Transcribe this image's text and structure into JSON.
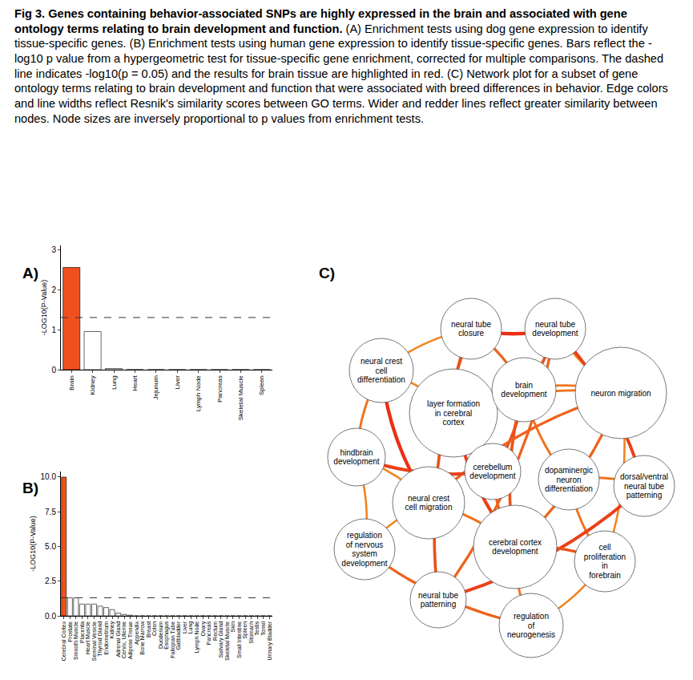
{
  "caption": {
    "label": "Fig 3.",
    "title": "Genes containing behavior-associated SNPs are highly expressed in the brain and associated with gene ontology terms relating to brain development and function.",
    "text": "(A) Enrichment tests using dog gene expression to identify tissue-specific genes. (B) Enrichment tests using human gene expression to identify tissue-specific genes. Bars reflect the -log10 p value from a hypergeometric test for tissue-specific gene enrichment, corrected for multiple comparisons. The dashed line indicates -log10(p = 0.05) and the results for brain tissue are highlighted in red. (C) Network plot for a subset of gene ontology terms relating to brain development and function that were associated with breed differences in behavior. Edge colors and line widths reflect Resnik's similarity scores between GO terms. Wider and redder lines reflect greater similarity between nodes. Node sizes are inversely proportional to p values from enrichment tests."
  },
  "chart_data": [
    {
      "type": "bar",
      "panel": "A)",
      "y_label": "-LOG10(P-Value)",
      "categories": [
        "Brain",
        "Kidney",
        "Lung",
        "Heart",
        "Jejunum",
        "Liver",
        "Lymph Node",
        "Pancreas",
        "Skeletal Muscle",
        "Spleen"
      ],
      "values": [
        2.55,
        0.95,
        0.03,
        0,
        0,
        0,
        0,
        0,
        0,
        0
      ],
      "colors": [
        "#f0501e",
        "#ffffff",
        "#ffffff",
        "#ffffff",
        "#ffffff",
        "#ffffff",
        "#ffffff",
        "#ffffff",
        "#ffffff",
        "#ffffff"
      ],
      "threshold": 1.301,
      "ylim": [
        0,
        3.1
      ],
      "yticks": [
        0,
        1,
        2,
        3
      ],
      "grid": false
    },
    {
      "type": "bar",
      "panel": "B)",
      "y_label": "-LOG10(P-Value)",
      "categories": [
        "Cerebral Cortex",
        "Prostate",
        "Smooth Muscle",
        "Placenta",
        "Heart Muscle",
        "Seminal Vesicle",
        "Thyroid Gland",
        "Endometrium",
        "Kidney",
        "Adrenal Gland",
        "Cervix, Uterine",
        "Adipose Tissue",
        "Appendix",
        "Bone Marrow",
        "Breast",
        "Colon",
        "Duodenum",
        "Esophagus",
        "Fallopian Tube",
        "Gallbladder",
        "Liver",
        "Lung",
        "Lymph Node",
        "Ovary",
        "Pancreas",
        "Rectum",
        "Salivary Gland",
        "Skeletal Muscle",
        "Skin",
        "Small Intestine",
        "Spleen",
        "Stomach",
        "Testis",
        "Tonsil",
        "Urinary Bladder"
      ],
      "values": [
        10.0,
        1.3,
        1.3,
        0.85,
        0.85,
        0.85,
        0.7,
        0.6,
        0.45,
        0.2,
        0.1,
        0.05,
        0,
        0,
        0,
        0,
        0,
        0,
        0,
        0,
        0,
        0,
        0,
        0,
        0,
        0,
        0,
        0,
        0,
        0,
        0,
        0,
        0,
        0,
        0
      ],
      "colors": [
        "#f0501e",
        "#ffffff",
        "#ffffff",
        "#ffffff",
        "#ffffff",
        "#ffffff",
        "#ffffff",
        "#ffffff",
        "#ffffff",
        "#ffffff",
        "#ffffff",
        "#ffffff",
        "#ffffff",
        "#ffffff",
        "#ffffff",
        "#ffffff",
        "#ffffff",
        "#ffffff",
        "#ffffff",
        "#ffffff",
        "#ffffff",
        "#ffffff",
        "#ffffff",
        "#ffffff",
        "#ffffff",
        "#ffffff",
        "#ffffff",
        "#ffffff",
        "#ffffff",
        "#ffffff",
        "#ffffff",
        "#ffffff",
        "#ffffff",
        "#ffffff",
        "#ffffff"
      ],
      "threshold": 1.301,
      "ylim": [
        0,
        10.4
      ],
      "yticks": [
        {
          "value": 0,
          "label": "0.0"
        },
        2.5,
        {
          "value": 5,
          "label": "5.0"
        },
        7.5,
        {
          "value": 10,
          "label": "10.0"
        }
      ],
      "grid": false
    }
  ],
  "network": {
    "panel": "C)",
    "nodes": [
      {
        "label": "neural tube closure",
        "size": 38
      },
      {
        "label": "neural tube development",
        "size": 38
      },
      {
        "label": "neural crest cell differentiation",
        "size": 40
      },
      {
        "label": "layer formation in cerebral cortex",
        "size": 55
      },
      {
        "label": "brain development",
        "size": 40
      },
      {
        "label": "neuron migration",
        "size": 57
      },
      {
        "label": "hindbrain development",
        "size": 36
      },
      {
        "label": "cerebellum development",
        "size": 35
      },
      {
        "label": "dopaminergic neuron differentiation",
        "size": 38
      },
      {
        "label": "dorsal/ventral neural tube patterning",
        "size": 38
      },
      {
        "label": "neural crest cell migration",
        "size": 45
      },
      {
        "label": "regulation of nervous system development",
        "size": 38
      },
      {
        "label": "cerebral cortex development",
        "size": 52
      },
      {
        "label": "cell proliferation in forebrain",
        "size": 38
      },
      {
        "label": "neural tube patterning",
        "size": 35
      },
      {
        "label": "regulation of neurogenesis",
        "size": 40
      }
    ],
    "edges": [
      {
        "source": 0,
        "target": 1,
        "similarity": 0.9
      },
      {
        "source": 0,
        "target": 4,
        "similarity": 0.6
      },
      {
        "source": 0,
        "target": 3,
        "similarity": 0.5
      },
      {
        "source": 1,
        "target": 4,
        "similarity": 0.7
      },
      {
        "source": 1,
        "target": 5,
        "similarity": 0.4
      },
      {
        "source": 1,
        "target": 9,
        "similarity": 0.8
      },
      {
        "source": 2,
        "target": 10,
        "similarity": 0.9
      },
      {
        "source": 2,
        "target": 3,
        "similarity": 0.4
      },
      {
        "source": 2,
        "target": 6,
        "similarity": 0.5
      },
      {
        "source": 3,
        "target": 4,
        "similarity": 0.6
      },
      {
        "source": 3,
        "target": 12,
        "similarity": 0.8
      },
      {
        "source": 3,
        "target": 5,
        "similarity": 0.5
      },
      {
        "source": 3,
        "target": 7,
        "similarity": 0.5
      },
      {
        "source": 4,
        "target": 7,
        "similarity": 0.7
      },
      {
        "source": 4,
        "target": 12,
        "similarity": 0.7
      },
      {
        "source": 4,
        "target": 5,
        "similarity": 0.5
      },
      {
        "source": 4,
        "target": 8,
        "similarity": 0.5
      },
      {
        "source": 5,
        "target": 12,
        "similarity": 0.6
      },
      {
        "source": 5,
        "target": 10,
        "similarity": 0.6
      },
      {
        "source": 5,
        "target": 13,
        "similarity": 0.4
      },
      {
        "source": 6,
        "target": 7,
        "similarity": 0.8
      },
      {
        "source": 6,
        "target": 10,
        "similarity": 0.4
      },
      {
        "source": 7,
        "target": 12,
        "similarity": 0.6
      },
      {
        "source": 8,
        "target": 9,
        "similarity": 0.5
      },
      {
        "source": 8,
        "target": 13,
        "similarity": 0.5
      },
      {
        "source": 9,
        "target": 14,
        "similarity": 0.8
      },
      {
        "source": 10,
        "target": 11,
        "similarity": 0.4
      },
      {
        "source": 10,
        "target": 12,
        "similarity": 0.5
      },
      {
        "source": 11,
        "target": 15,
        "similarity": 0.6
      },
      {
        "source": 12,
        "target": 13,
        "similarity": 0.7
      },
      {
        "source": 12,
        "target": 15,
        "similarity": 0.5
      },
      {
        "source": 14,
        "target": 0,
        "similarity": 0.7
      },
      {
        "source": 14,
        "target": 1,
        "similarity": 0.6
      },
      {
        "source": 13,
        "target": 15,
        "similarity": 0.4
      },
      {
        "source": 11,
        "target": 6,
        "similarity": 0.4
      },
      {
        "source": 2,
        "target": 0,
        "similarity": 0.4
      }
    ]
  }
}
